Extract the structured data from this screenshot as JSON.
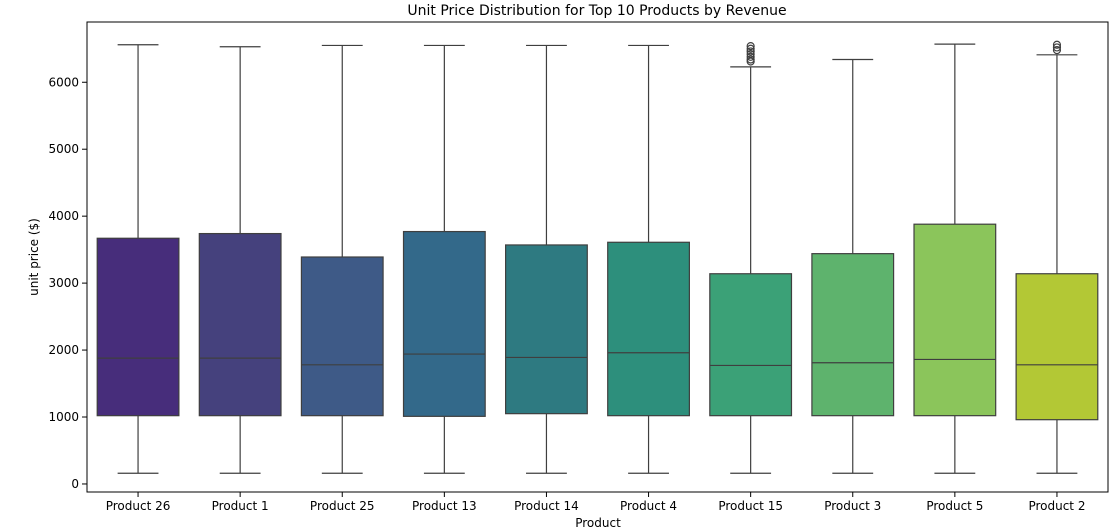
{
  "chart_data": {
    "type": "box",
    "title": "Unit Price Distribution for Top 10 Products by Revenue",
    "xlabel": "Product",
    "ylabel": "unit price ($)",
    "ylim": [
      -120,
      6900
    ],
    "yticks": [
      0,
      1000,
      2000,
      3000,
      4000,
      5000,
      6000
    ],
    "grid": false,
    "legend": "none",
    "series": [
      {
        "category": "Product 26",
        "whisker_low": 160,
        "q1": 1020,
        "median": 1880,
        "q3": 3670,
        "whisker_high": 6560,
        "outliers": [],
        "color": "#472d7b"
      },
      {
        "category": "Product 1",
        "whisker_low": 160,
        "q1": 1020,
        "median": 1880,
        "q3": 3740,
        "whisker_high": 6530,
        "outliers": [],
        "color": "#45417d"
      },
      {
        "category": "Product 25",
        "whisker_low": 160,
        "q1": 1020,
        "median": 1780,
        "q3": 3390,
        "whisker_high": 6550,
        "outliers": [],
        "color": "#3e5a87"
      },
      {
        "category": "Product 13",
        "whisker_low": 160,
        "q1": 1010,
        "median": 1940,
        "q3": 3770,
        "whisker_high": 6550,
        "outliers": [],
        "color": "#33698a"
      },
      {
        "category": "Product 14",
        "whisker_low": 160,
        "q1": 1050,
        "median": 1890,
        "q3": 3570,
        "whisker_high": 6550,
        "outliers": [],
        "color": "#2e7a81"
      },
      {
        "category": "Product 4",
        "whisker_low": 160,
        "q1": 1020,
        "median": 1960,
        "q3": 3610,
        "whisker_high": 6550,
        "outliers": [],
        "color": "#2d8f7c"
      },
      {
        "category": "Product 15",
        "whisker_low": 160,
        "q1": 1020,
        "median": 1770,
        "q3": 3140,
        "whisker_high": 6230,
        "outliers": [
          6310,
          6340,
          6380,
          6420,
          6460,
          6500,
          6540
        ],
        "color": "#3ba177"
      },
      {
        "category": "Product 3",
        "whisker_low": 160,
        "q1": 1020,
        "median": 1810,
        "q3": 3440,
        "whisker_high": 6340,
        "outliers": [],
        "color": "#5eb36d"
      },
      {
        "category": "Product 5",
        "whisker_low": 160,
        "q1": 1020,
        "median": 1860,
        "q3": 3880,
        "whisker_high": 6570,
        "outliers": [],
        "color": "#8bc55b"
      },
      {
        "category": "Product 2",
        "whisker_low": 160,
        "q1": 960,
        "median": 1780,
        "q3": 3140,
        "whisker_high": 6410,
        "outliers": [
          6480,
          6520,
          6560
        ],
        "color": "#b3c835"
      }
    ]
  }
}
